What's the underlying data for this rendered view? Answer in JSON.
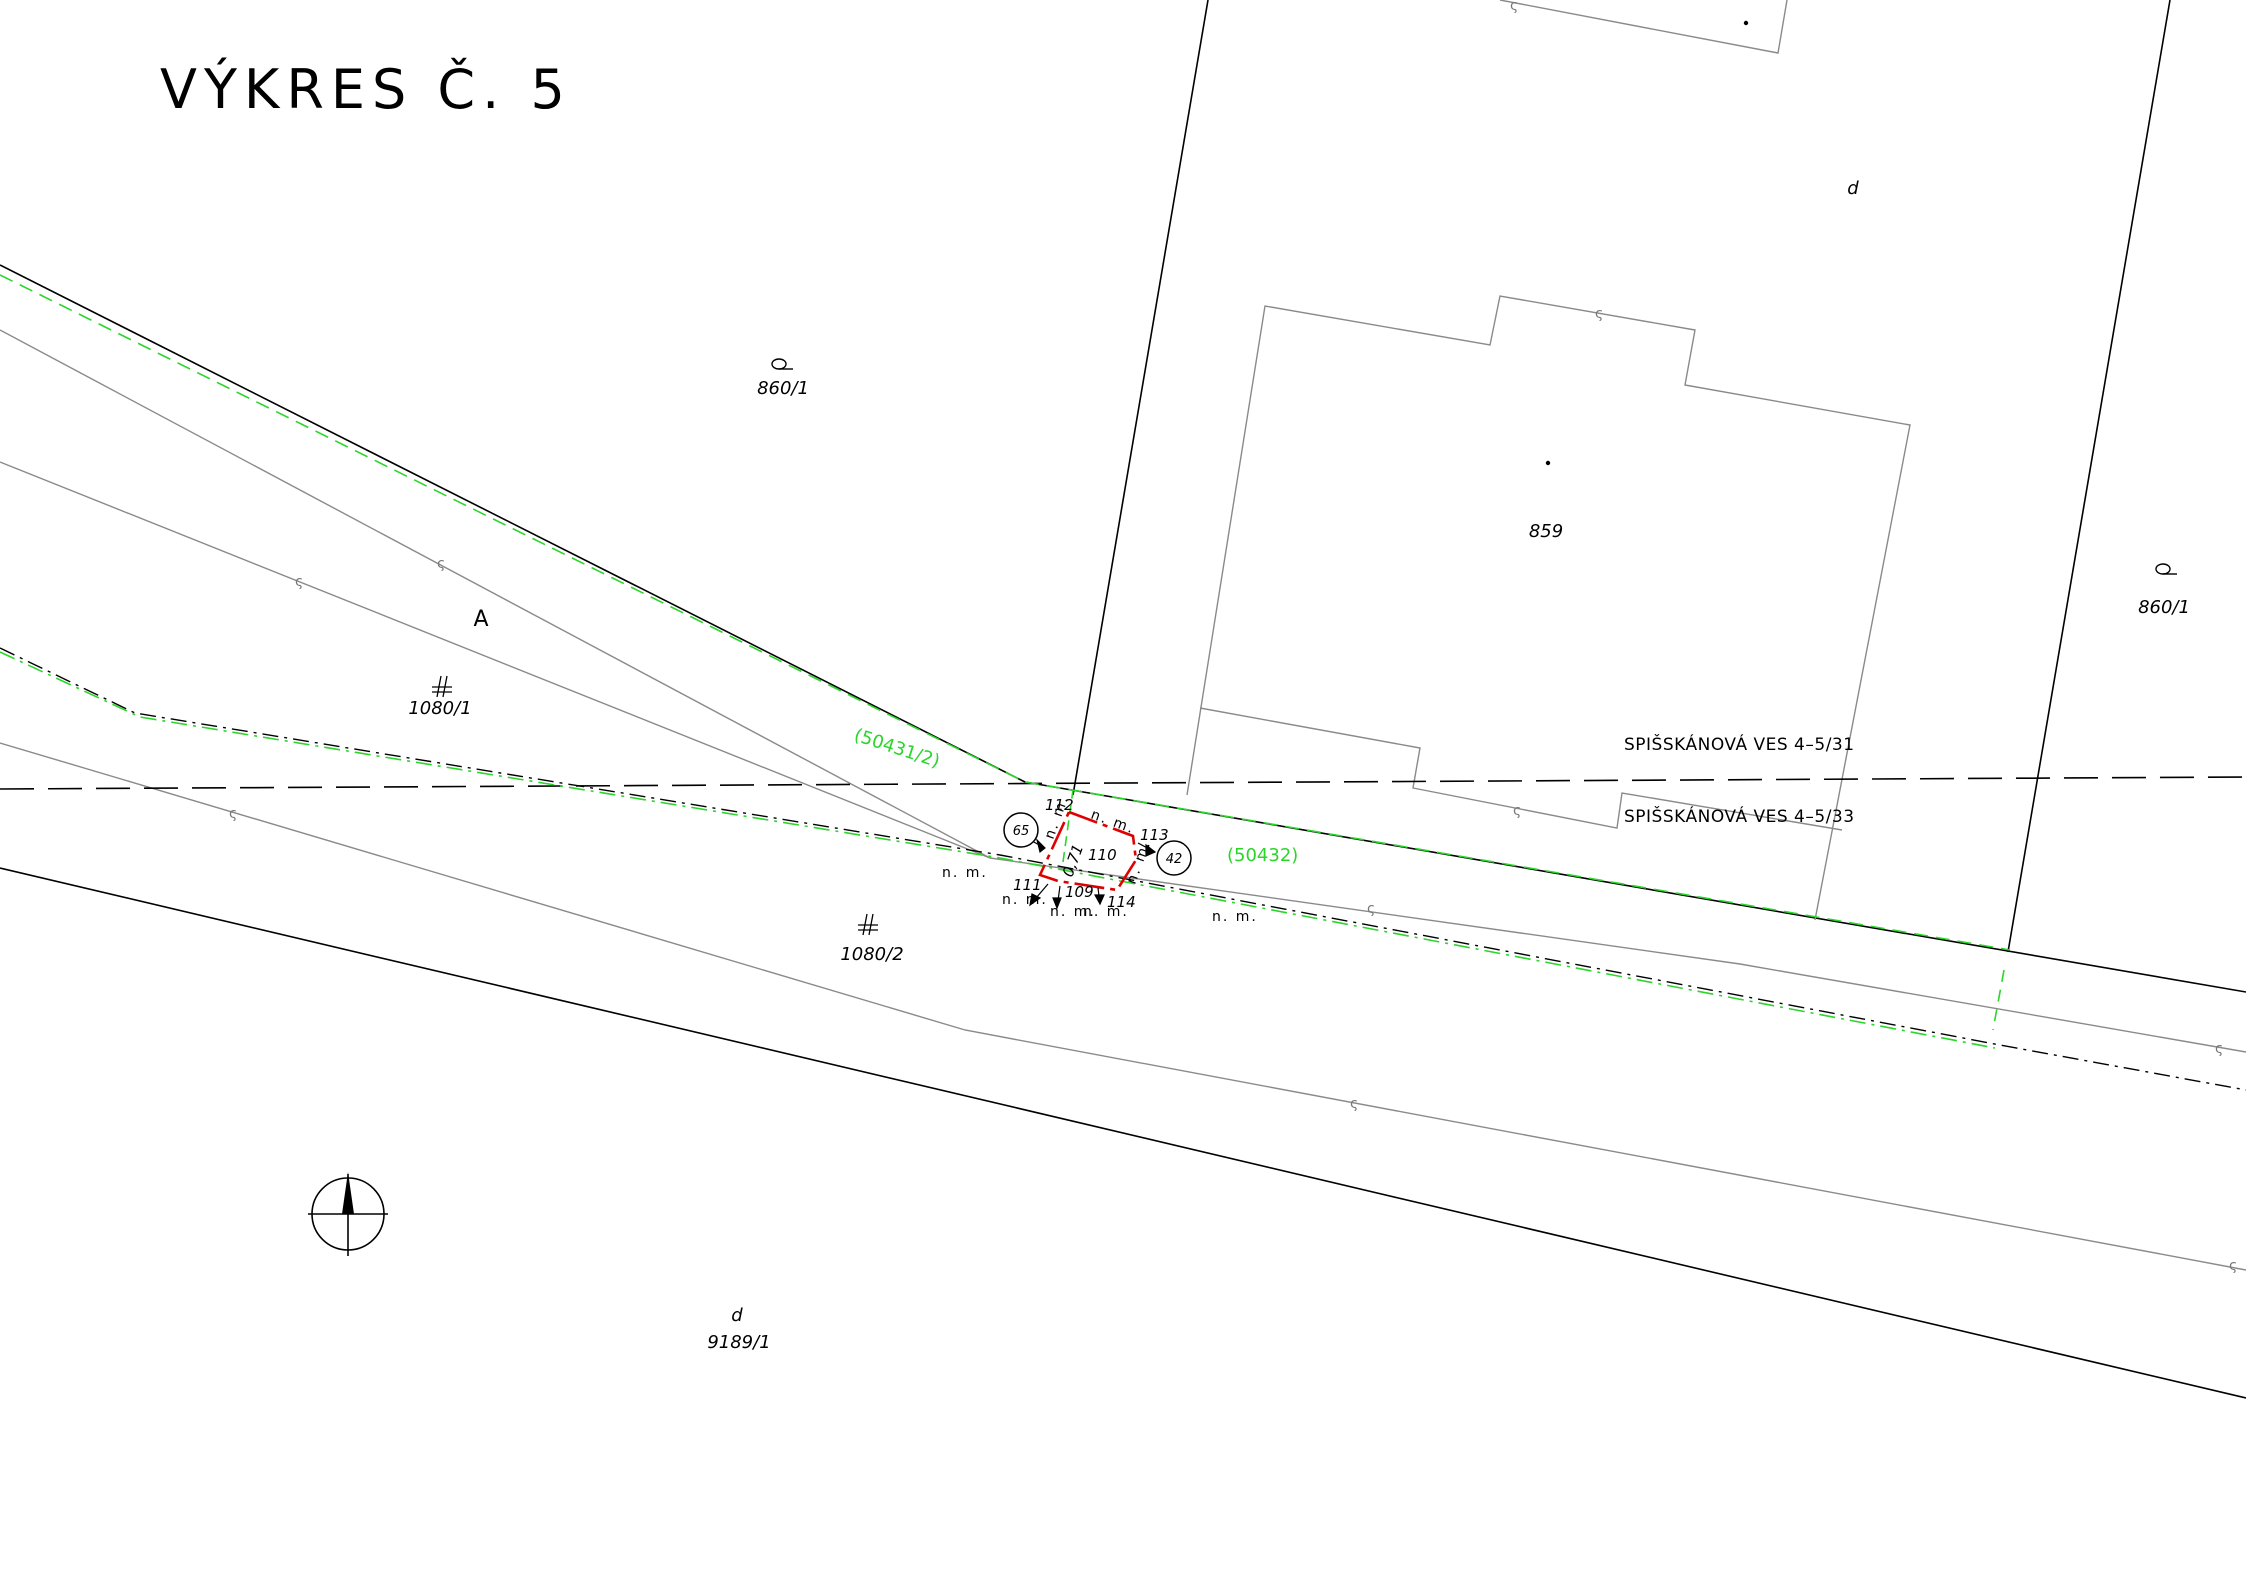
{
  "title": "VÝKRES Č. 5",
  "parcels": {
    "p860_1_left": "860/1",
    "p860_1_right": "860/1",
    "p859": "859",
    "p1080_1": "1080/1",
    "p1080_2": "1080/2",
    "p9189_1": "9189/1"
  },
  "land_use_symbols": {
    "d_top": "d",
    "d_bottom": "d",
    "a": "A"
  },
  "streets": {
    "addr_31": "SPIŠSKÁNOVÁ VES 4–5/31",
    "addr_33": "SPIŠSKÁNOVÁ VES 4–5/33"
  },
  "survey": {
    "green_labels": [
      "(50431/2)",
      "(50432)"
    ],
    "circle_labels": [
      "65",
      "42"
    ],
    "points": [
      "112",
      "113",
      "110",
      "111",
      "109",
      "114"
    ],
    "dimension": "0,71",
    "nm_label": "n. m."
  },
  "colors": {
    "boundary": "#000000",
    "building": "#888888",
    "cadastral_green": "#2bd62b",
    "survey_red": "#e00000"
  }
}
